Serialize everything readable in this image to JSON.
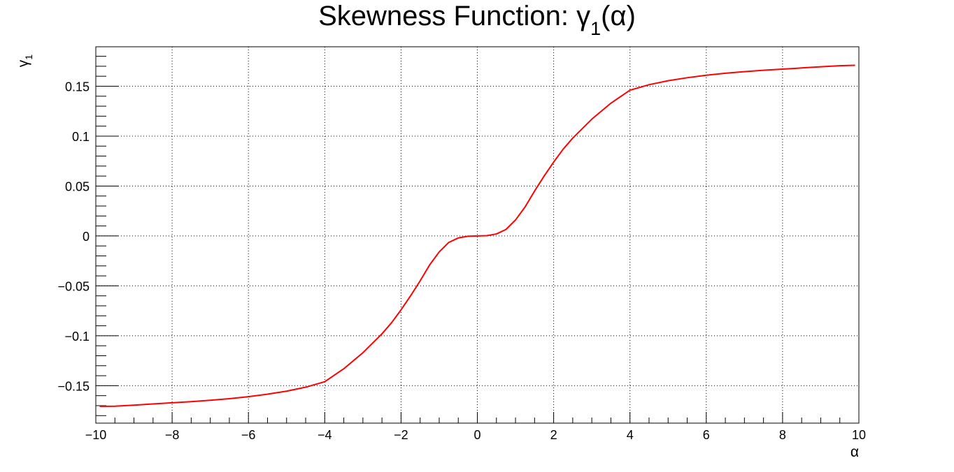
{
  "chart_data": {
    "type": "line",
    "title": {
      "main": "Skewness Function: ",
      "symbol": "γ",
      "subscript": "1",
      "suffix": "(α)"
    },
    "xlabel": "α",
    "ylabel": {
      "symbol": "γ",
      "subscript": "1"
    },
    "xlim": [
      -10,
      10
    ],
    "ylim": [
      -0.1875,
      0.1895
    ],
    "grid": true,
    "x_ticks": [
      {
        "value": -10,
        "label": "−10"
      },
      {
        "value": -8,
        "label": "−8"
      },
      {
        "value": -6,
        "label": "−6"
      },
      {
        "value": -4,
        "label": "−4"
      },
      {
        "value": -2,
        "label": "−2"
      },
      {
        "value": 0,
        "label": "0"
      },
      {
        "value": 2,
        "label": "2"
      },
      {
        "value": 4,
        "label": "4"
      },
      {
        "value": 6,
        "label": "6"
      },
      {
        "value": 8,
        "label": "8"
      },
      {
        "value": 10,
        "label": "10"
      }
    ],
    "y_ticks": [
      {
        "value": -0.15,
        "label": "−0.15"
      },
      {
        "value": -0.1,
        "label": "−0.1"
      },
      {
        "value": -0.05,
        "label": "−0.05"
      },
      {
        "value": 0,
        "label": "0"
      },
      {
        "value": 0.05,
        "label": "0.05"
      },
      {
        "value": 0.1,
        "label": "0.1"
      },
      {
        "value": 0.15,
        "label": "0.15"
      }
    ],
    "series": [
      {
        "color": "#ff0000",
        "points": [
          [
            -9.9,
            -0.1707
          ],
          [
            -9.5,
            -0.1705
          ],
          [
            -9.0,
            -0.1695
          ],
          [
            -8.5,
            -0.1683
          ],
          [
            -8.0,
            -0.1671
          ],
          [
            -7.5,
            -0.166
          ],
          [
            -7.0,
            -0.1646
          ],
          [
            -6.5,
            -0.163
          ],
          [
            -6.0,
            -0.161
          ],
          [
            -5.5,
            -0.1585
          ],
          [
            -5.0,
            -0.1555
          ],
          [
            -4.5,
            -0.1515
          ],
          [
            -4.0,
            -0.146
          ],
          [
            -3.5,
            -0.133
          ],
          [
            -3.0,
            -0.117
          ],
          [
            -2.5,
            -0.098
          ],
          [
            -2.25,
            -0.087
          ],
          [
            -2.0,
            -0.074
          ],
          [
            -1.75,
            -0.06
          ],
          [
            -1.5,
            -0.045
          ],
          [
            -1.25,
            -0.029
          ],
          [
            -1.0,
            -0.016
          ],
          [
            -0.75,
            -0.0065
          ],
          [
            -0.5,
            -0.002
          ],
          [
            -0.25,
            -0.0003
          ],
          [
            0.0,
            0.0
          ],
          [
            0.25,
            0.0003
          ],
          [
            0.5,
            0.002
          ],
          [
            0.75,
            0.0065
          ],
          [
            1.0,
            0.016
          ],
          [
            1.25,
            0.029
          ],
          [
            1.5,
            0.045
          ],
          [
            1.75,
            0.06
          ],
          [
            2.0,
            0.074
          ],
          [
            2.25,
            0.087
          ],
          [
            2.5,
            0.098
          ],
          [
            3.0,
            0.117
          ],
          [
            3.5,
            0.133
          ],
          [
            4.0,
            0.146
          ],
          [
            4.5,
            0.1515
          ],
          [
            5.0,
            0.1555
          ],
          [
            5.5,
            0.1585
          ],
          [
            6.0,
            0.161
          ],
          [
            6.5,
            0.163
          ],
          [
            7.0,
            0.1646
          ],
          [
            7.5,
            0.166
          ],
          [
            8.0,
            0.1671
          ],
          [
            8.5,
            0.1683
          ],
          [
            9.0,
            0.1695
          ],
          [
            9.5,
            0.1705
          ],
          [
            9.9,
            0.171
          ]
        ]
      }
    ]
  }
}
